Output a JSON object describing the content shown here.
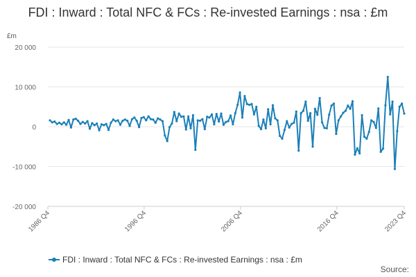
{
  "title": "FDI : Inward : Total NFC & FCs : Re-invested Earnings : nsa : £m",
  "unit_label": "£m",
  "source_label": "Source:",
  "colors": {
    "series": "#1a7fb8",
    "grid": "#e6e6e6",
    "axis": "#cccccc",
    "text": "#333333",
    "tick_text": "#666666"
  },
  "chart_data": {
    "type": "line",
    "title": "FDI : Inward : Total NFC & FCs : Re-invested Earnings : nsa : £m",
    "xlabel": "",
    "ylabel": "£m",
    "ylim": [
      -20000,
      20000
    ],
    "y_ticks": [
      20000,
      10000,
      0,
      -10000,
      -20000
    ],
    "y_tick_labels": [
      "20 000",
      "10 000",
      "0",
      "-10 000",
      "-20 000"
    ],
    "x_start": "1986 Q4",
    "x_end": "2023 Q4",
    "x_ticks": [
      "1986 Q4",
      "1996 Q4",
      "2006 Q4",
      "2016 Q4",
      "2023 Q4"
    ],
    "grid": true,
    "legend_position": "bottom",
    "series": [
      {
        "name": "FDI : Inward : Total NFC & FCs : Re-invested Earnings : nsa : £m",
        "values": [
          1600,
          1100,
          1300,
          700,
          1000,
          600,
          1100,
          500,
          1700,
          -200,
          1800,
          2000,
          1500,
          700,
          1200,
          800,
          1400,
          -500,
          900,
          400,
          800,
          -900,
          600,
          400,
          700,
          -800,
          1000,
          1800,
          1400,
          1600,
          500,
          1500,
          1800,
          1500,
          200,
          1900,
          2300,
          1500,
          -100,
          2200,
          2400,
          1600,
          2600,
          1900,
          1800,
          1000,
          2100,
          1800,
          1400,
          -2200,
          -3600,
          -100,
          800,
          3700,
          1400,
          3300,
          2500,
          2600,
          -700,
          2600,
          -400,
          2900,
          -5800,
          1600,
          1500,
          1900,
          -600,
          2500,
          2300,
          3100,
          600,
          3200,
          1300,
          3300,
          500,
          1200,
          1400,
          2800,
          600,
          3400,
          5500,
          8600,
          2300,
          7700,
          5700,
          5500,
          5700,
          3100,
          5000,
          200,
          -600,
          1800,
          -400,
          4400,
          600,
          5400,
          2100,
          1600,
          -2300,
          -3000,
          -800,
          1400,
          -200,
          700,
          1000,
          3800,
          -6000,
          3400,
          4000,
          6300,
          1500,
          3400,
          -5000,
          4500,
          3000,
          7200,
          1100,
          -300,
          -400,
          3000,
          5300,
          5800,
          -1800,
          1600,
          2600,
          3500,
          4000,
          5300,
          4500,
          6400,
          -7000,
          -5400,
          -6700,
          2900,
          -2500,
          -3000,
          -1300,
          1600,
          1200,
          -300,
          4600,
          -6300,
          -5500,
          5400,
          12500,
          3100,
          6300,
          -10600,
          -1100,
          5000,
          5800,
          3300
        ]
      }
    ]
  }
}
